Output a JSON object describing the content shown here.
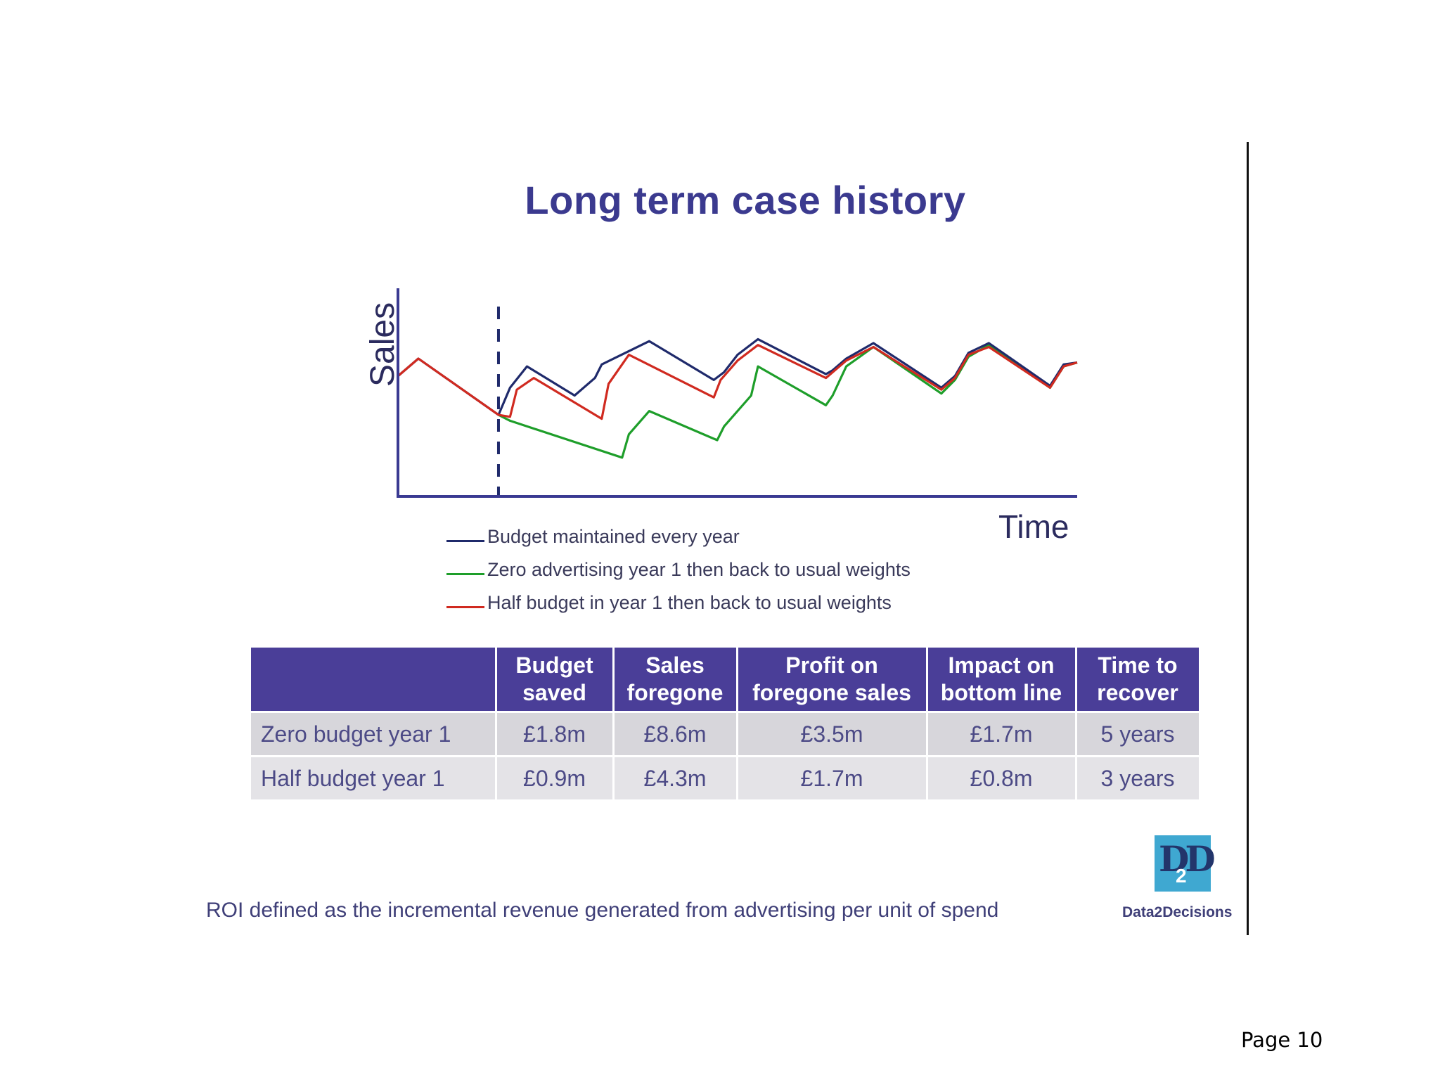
{
  "slide": {
    "title": "Long term case history",
    "footnote": "ROI defined as the incremental revenue generated from advertising per unit of spend",
    "logo_text": "Data2Decisions",
    "logo_mark": "DD",
    "logo_sub": "2",
    "page_label": "Page 10"
  },
  "chart_data": {
    "type": "line",
    "title": "Long term case history",
    "xlabel": "Time",
    "ylabel": "Sales",
    "xlim": [
      0,
      100
    ],
    "ylim": [
      0,
      100
    ],
    "grid": false,
    "legend_position": "bottom-left",
    "event_marker": {
      "x": 14.8,
      "style": "dashed",
      "color": "#1f2a6b"
    },
    "series": [
      {
        "name": "Budget maintained every year",
        "color": "#1f2a6b",
        "points": [
          [
            0,
            62
          ],
          [
            3,
            71
          ],
          [
            14.8,
            42
          ],
          [
            16.5,
            56
          ],
          [
            19,
            67
          ],
          [
            26,
            52
          ],
          [
            29,
            61
          ],
          [
            30,
            68
          ],
          [
            37,
            80
          ],
          [
            46.5,
            60
          ],
          [
            48,
            64
          ],
          [
            50,
            73
          ],
          [
            53,
            81
          ],
          [
            63,
            63
          ],
          [
            64,
            65
          ],
          [
            66,
            71
          ],
          [
            70,
            79
          ],
          [
            80,
            56
          ],
          [
            82,
            62
          ],
          [
            84,
            74
          ],
          [
            87,
            79
          ],
          [
            96,
            57
          ],
          [
            98,
            68
          ],
          [
            100,
            69
          ]
        ]
      },
      {
        "name": "Zero advertising year 1 then back to usual weights",
        "color": "#1e9e2a",
        "points": [
          [
            14.8,
            42
          ],
          [
            16.5,
            39
          ],
          [
            33,
            20
          ],
          [
            34,
            32
          ],
          [
            37,
            44
          ],
          [
            47,
            29
          ],
          [
            48,
            36
          ],
          [
            52,
            52
          ],
          [
            53,
            67
          ],
          [
            63,
            47
          ],
          [
            64,
            52
          ],
          [
            66,
            67
          ],
          [
            70,
            77
          ],
          [
            80,
            53
          ],
          [
            82,
            60
          ],
          [
            84,
            72
          ],
          [
            87,
            78
          ],
          [
            96,
            56
          ],
          [
            98,
            67
          ],
          [
            100,
            69
          ]
        ]
      },
      {
        "name": "Half budget in year 1 then back to usual weights",
        "color": "#d02a20",
        "points": [
          [
            0,
            62
          ],
          [
            3,
            71
          ],
          [
            14.8,
            42
          ],
          [
            16.5,
            41
          ],
          [
            17.5,
            55
          ],
          [
            20,
            61
          ],
          [
            30,
            40
          ],
          [
            31,
            58
          ],
          [
            34,
            73
          ],
          [
            46.5,
            51
          ],
          [
            47.5,
            60
          ],
          [
            50,
            70
          ],
          [
            53,
            78
          ],
          [
            63,
            61
          ],
          [
            64,
            64
          ],
          [
            66,
            70
          ],
          [
            70,
            77
          ],
          [
            80,
            55
          ],
          [
            82,
            61
          ],
          [
            84,
            73
          ],
          [
            87,
            77
          ],
          [
            96,
            56
          ],
          [
            98,
            67
          ],
          [
            100,
            69
          ]
        ]
      }
    ]
  },
  "table": {
    "headers": [
      "",
      "Budget saved",
      "Sales foregone",
      "Profit on foregone sales",
      "Impact on bottom line",
      "Time to recover"
    ],
    "rows": [
      [
        "Zero budget year 1",
        "£1.8m",
        "£8.6m",
        "£3.5m",
        "£1.7m",
        "5 years"
      ],
      [
        "Half budget year 1",
        "£0.9m",
        "£4.3m",
        "£1.7m",
        "£0.8m",
        "3 years"
      ]
    ]
  }
}
